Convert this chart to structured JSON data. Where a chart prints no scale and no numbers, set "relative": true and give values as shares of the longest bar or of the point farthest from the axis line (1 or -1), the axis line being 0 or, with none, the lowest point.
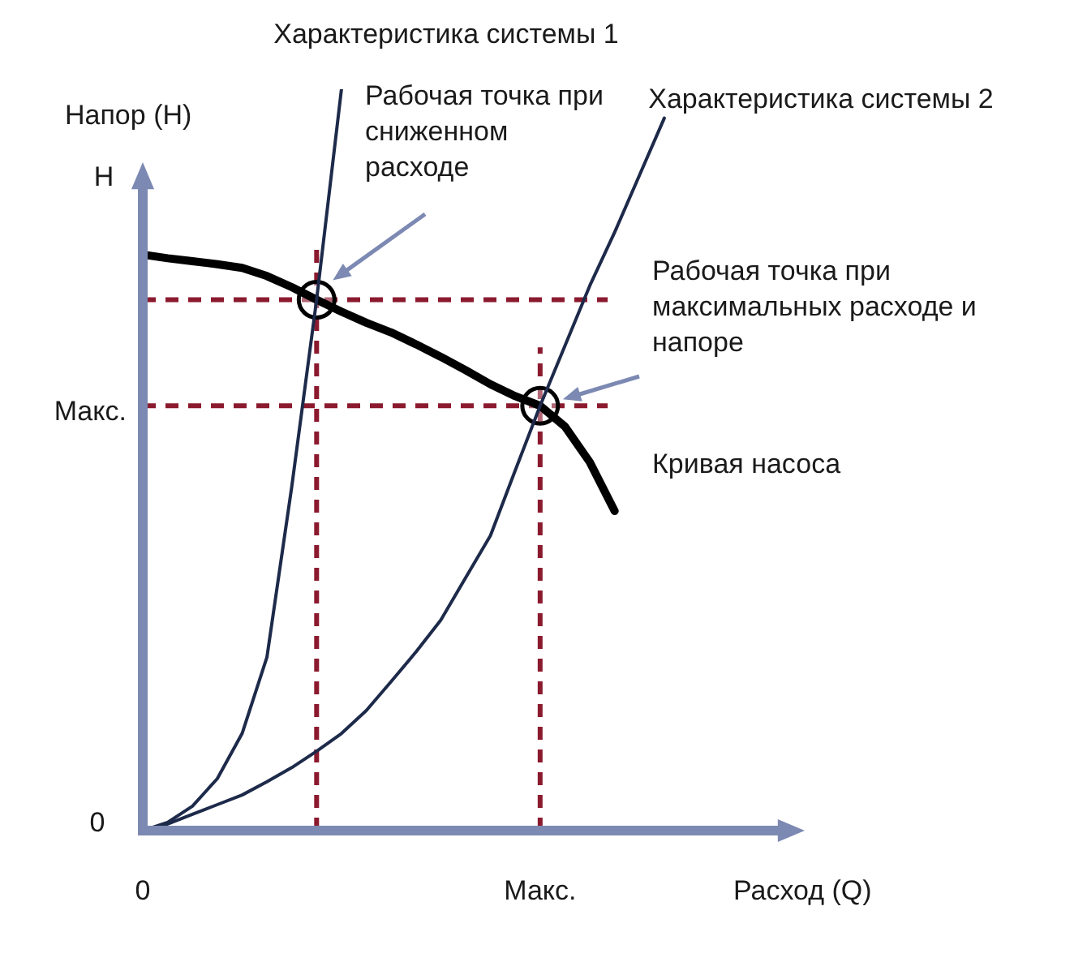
{
  "chart_data": {
    "type": "line",
    "relative": true,
    "xlabel": "Расход (Q)",
    "ylabel": "Напор (H)",
    "marker": "none",
    "line_style": "solid",
    "categories": [
      "0",
      null,
      null,
      null,
      null,
      null,
      null,
      null,
      null,
      null,
      null,
      null,
      null,
      null,
      null,
      null,
      "Макс.",
      null,
      null,
      null,
      null,
      null,
      null,
      null,
      null,
      null,
      null
    ],
    "series": [
      {
        "name": "Характеристика системы 1",
        "color": "#1d2a4a",
        "values": [
          0,
          0.011,
          0.033,
          0.07,
          0.131,
          0.234,
          0.464,
          0.716,
          1,
          null,
          null,
          null,
          null,
          null,
          null,
          null,
          null,
          null,
          null,
          null,
          null,
          null,
          null,
          null,
          null,
          null,
          null
        ]
      },
      {
        "name": "Характеристика системы 2",
        "color": "#1d2a4a",
        "values": [
          0,
          0.009,
          0.022,
          0.035,
          0.048,
          0.066,
          0.085,
          0.107,
          0.131,
          0.162,
          0.201,
          0.241,
          0.284,
          0.341,
          0.398,
          0.486,
          0.573,
          0.654,
          0.735,
          0.807,
          0.884,
          0.961,
          null,
          null,
          null,
          null,
          null
        ]
      },
      {
        "name": "Кривая насоса",
        "color": "#000000",
        "values": [
          0.777,
          0.772,
          0.768,
          0.764,
          0.759,
          0.748,
          0.733,
          0.716,
          0.7,
          0.685,
          0.672,
          0.656,
          0.639,
          0.621,
          0.602,
          0.586,
          0.573,
          0.545,
          0.497,
          0.431,
          null,
          null,
          null,
          null,
          null,
          null,
          null
        ]
      },
      {
        "type": "scatter",
        "marker": "circle",
        "color": "#000000",
        "values": [
          null,
          null,
          null,
          null,
          null,
          null,
          null,
          0.716,
          null,
          null,
          null,
          null,
          null,
          null,
          null,
          null,
          0.573,
          null,
          null,
          null,
          null,
          null,
          null,
          null,
          null,
          null,
          null
        ]
      }
    ],
    "ref_lines": [
      {
        "axis": "y",
        "value": 0.716,
        "label": null,
        "color": "#8b1a2e",
        "line_style": "dashed"
      },
      {
        "axis": "y",
        "value": 0.573,
        "label": "Макс.",
        "color": "#8b1a2e",
        "line_style": "dashed"
      }
    ],
    "annotations": [
      "Рабочая точка при\nсниженном\nрасходе",
      "Рабочая точка при\nмаксимальных расходе и\nнапоре",
      "H",
      "0"
    ]
  }
}
